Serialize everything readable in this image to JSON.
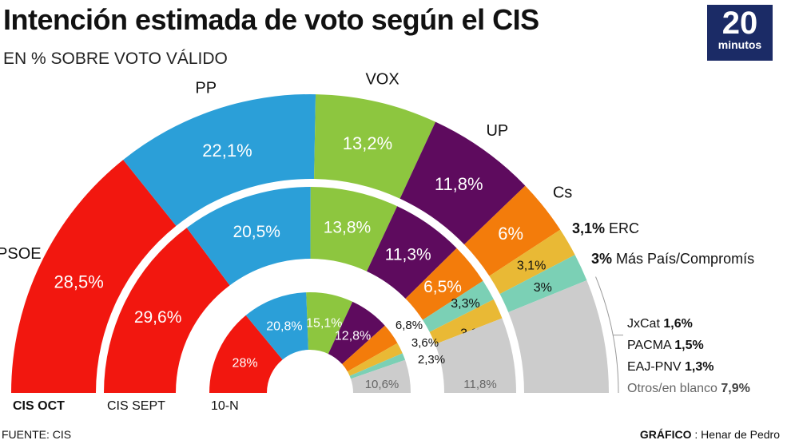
{
  "title": "Intención estimada de voto según el CIS",
  "subtitle": "EN % SOBRE VOTO VÁLIDO",
  "logo": {
    "number": "20",
    "word": "minutos",
    "color": "#1b2b66"
  },
  "colors": {
    "PSOE": "#f2170f",
    "PP": "#2b9fd8",
    "VOX": "#8dc63f",
    "UP": "#5e0b5e",
    "Cs": "#f37c0b",
    "ERC": "#e9b935",
    "MP": "#7bd0b5",
    "Otros": "#cccccc"
  },
  "chart_data": {
    "type": "pie",
    "variant": "concentric semi-donut",
    "rings": [
      {
        "name": "CIS OCT",
        "slices": [
          {
            "party": "PSOE",
            "value": 28.5,
            "label": "28,5%"
          },
          {
            "party": "PP",
            "value": 22.1,
            "label": "22,1%"
          },
          {
            "party": "VOX",
            "value": 13.2,
            "label": "13,2%"
          },
          {
            "party": "UP",
            "value": 11.8,
            "label": "11,8%"
          },
          {
            "party": "Cs",
            "value": 6,
            "label": "6%"
          },
          {
            "party": "ERC",
            "value": 3.1,
            "label": "3,1%"
          },
          {
            "party": "MP",
            "value": 3,
            "label": "3%"
          },
          {
            "party": "Otros",
            "value": 12.3,
            "label": ""
          }
        ]
      },
      {
        "name": "CIS SEPT",
        "slices": [
          {
            "party": "PSOE",
            "value": 29.6,
            "label": "29,6%"
          },
          {
            "party": "PP",
            "value": 20.5,
            "label": "20,5%"
          },
          {
            "party": "VOX",
            "value": 13.8,
            "label": "13,8%"
          },
          {
            "party": "UP",
            "value": 11.3,
            "label": "11,3%"
          },
          {
            "party": "Cs",
            "value": 6.5,
            "label": "6,5%"
          },
          {
            "party": "MP",
            "value": 3.3,
            "label": "3,3%"
          },
          {
            "party": "ERC",
            "value": 3.2,
            "label": "3,2%"
          },
          {
            "party": "Otros",
            "value": 11.8,
            "label": "11,8%"
          }
        ]
      },
      {
        "name": "10-N",
        "slices": [
          {
            "party": "PSOE",
            "value": 28,
            "label": "28%"
          },
          {
            "party": "PP",
            "value": 20.8,
            "label": "20,8%"
          },
          {
            "party": "VOX",
            "value": 15.1,
            "label": "15,1%"
          },
          {
            "party": "UP",
            "value": 12.8,
            "label": "12,8%"
          },
          {
            "party": "Cs",
            "value": 6.8,
            "label": "6,8%"
          },
          {
            "party": "ERC",
            "value": 3.6,
            "label": "3,6%"
          },
          {
            "party": "MP",
            "value": 2.3,
            "label": "2,3%"
          },
          {
            "party": "Otros",
            "value": 10.6,
            "label": "10,6%"
          }
        ]
      }
    ],
    "party_names": {
      "PSOE": "PSOE",
      "PP": "PP",
      "VOX": "VOX",
      "UP": "UP",
      "Cs": "Cs"
    },
    "side_labels": [
      {
        "value": "3,1%",
        "name": "ERC"
      },
      {
        "value": "3%",
        "name": "Más País/Compromís"
      }
    ],
    "otros_breakdown": [
      {
        "name": "JxCat",
        "value": "1,6%"
      },
      {
        "name": "PACMA",
        "value": "1,5%"
      },
      {
        "name": "EAJ-PNV",
        "value": "1,3%"
      },
      {
        "name": "Otros/en blanco",
        "value": "7,9%"
      }
    ]
  },
  "footer": {
    "source": "FUENTE: CIS",
    "credit_label": "GRÁFICO",
    "credit_name": " : Henar de Pedro"
  }
}
